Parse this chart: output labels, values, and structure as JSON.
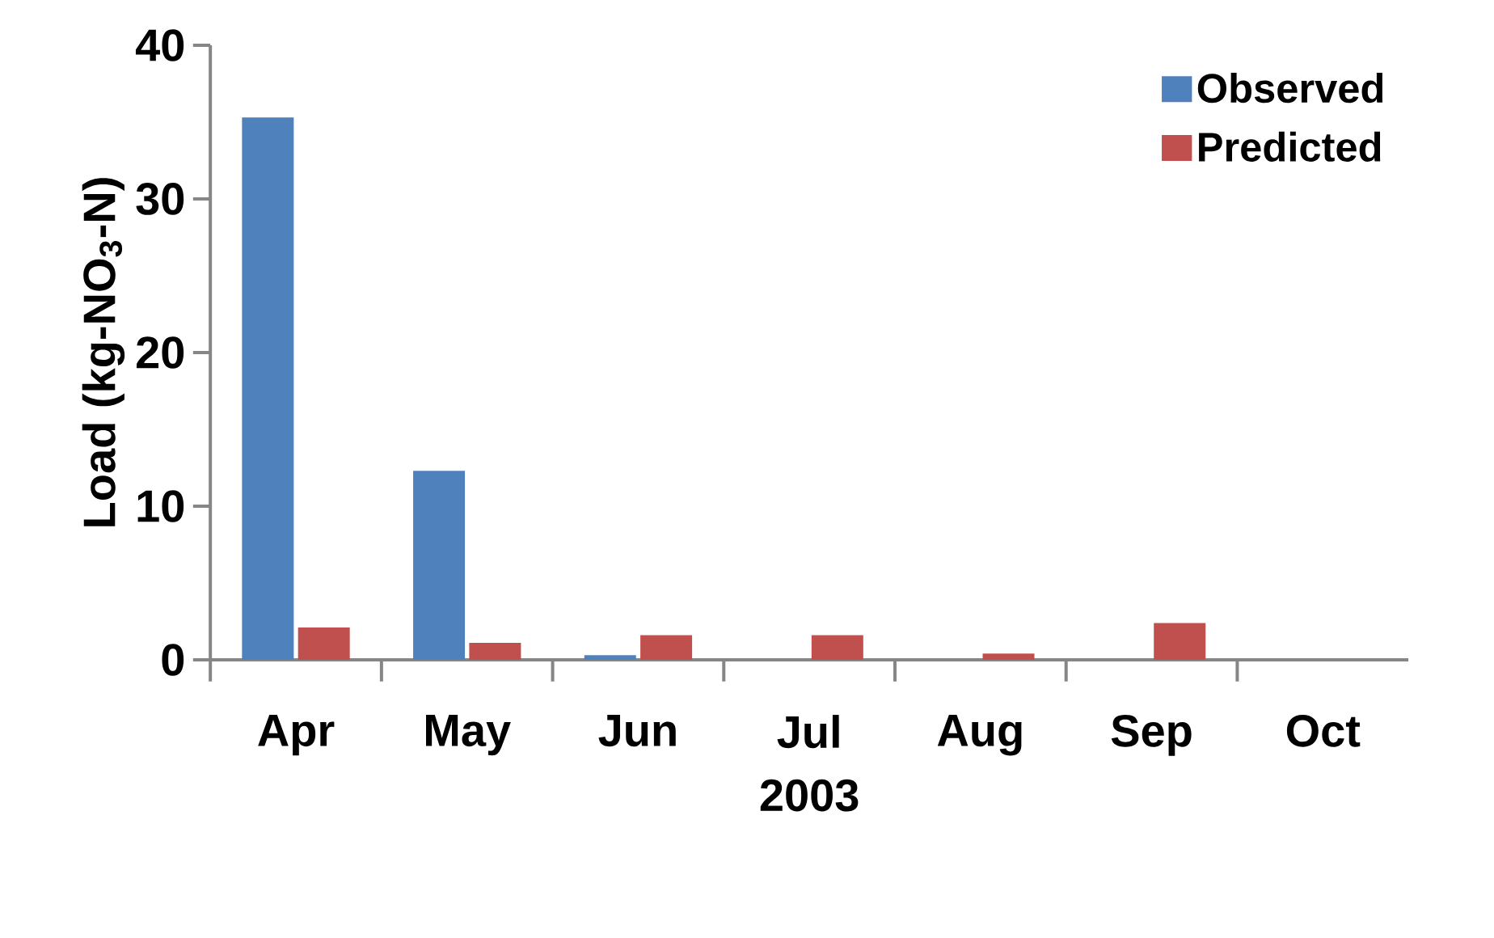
{
  "chart_data": {
    "type": "bar",
    "xlabel": "2003",
    "ylabel": "Load (kg-NO$_{3}$-N)",
    "categories": [
      "Apr",
      "May",
      "Jun",
      "Jul",
      "Aug",
      "Sep",
      "Oct"
    ],
    "series": [
      {
        "name": "Observed",
        "color": "#4f81bd",
        "values": [
          35.3,
          12.3,
          0.3,
          0,
          0,
          0,
          0
        ]
      },
      {
        "name": "Predicted",
        "color": "#c0504d",
        "values": [
          2.1,
          1.1,
          1.6,
          1.6,
          0.4,
          2.4,
          0
        ]
      }
    ],
    "ylim": [
      0,
      40
    ],
    "yticks": [
      0,
      10,
      20,
      30,
      40
    ],
    "grid": false,
    "legend": "top right"
  }
}
